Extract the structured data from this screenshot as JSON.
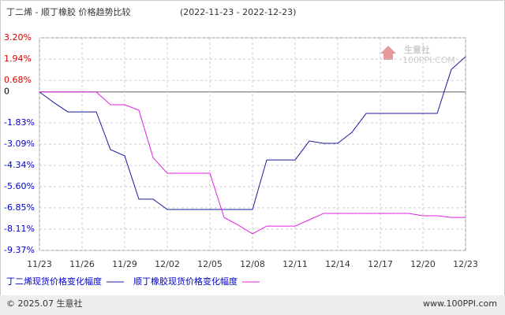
{
  "chart_data": {
    "type": "line",
    "title": "丁二烯 - 顺丁橡胶 价格趋势比较",
    "subtitle": "(2022-11-23 - 2022-12-23)",
    "categories": [
      "11/23",
      null,
      null,
      "11/26",
      null,
      null,
      "11/29",
      null,
      null,
      "12/02",
      null,
      null,
      "12/05",
      null,
      null,
      "12/08",
      null,
      null,
      "12/11",
      null,
      null,
      "12/14",
      null,
      null,
      "12/17",
      null,
      null,
      "12/20",
      null,
      null,
      "12/23"
    ],
    "series": [
      {
        "name": "丁二烯现货价格变化幅度",
        "color": "#1a1aa0",
        "values": [
          0,
          -0.62,
          -1.18,
          -1.18,
          -1.18,
          -3.41,
          -3.78,
          -6.34,
          -6.34,
          -6.95,
          -6.95,
          -6.95,
          -6.95,
          -6.95,
          -6.95,
          -6.95,
          -4.02,
          -4.02,
          -4.02,
          -2.9,
          -3.04,
          -3.04,
          -2.39,
          -1.27,
          -1.27,
          -1.27,
          -1.27,
          -1.27,
          -1.27,
          1.33,
          2.08
        ]
      },
      {
        "name": "顺丁橡胶现货价格变化幅度",
        "color": "#e020e0",
        "values": [
          0,
          0,
          0,
          0,
          0,
          -0.76,
          -0.76,
          -1.08,
          -3.88,
          -4.81,
          -4.81,
          -4.81,
          -4.81,
          -7.42,
          -7.88,
          -8.39,
          -7.93,
          -7.93,
          -7.93,
          -7.56,
          -7.18,
          -7.18,
          -7.18,
          -7.18,
          -7.18,
          -7.18,
          -7.18,
          -7.32,
          -7.32,
          -7.42,
          -7.42
        ]
      }
    ],
    "ylim": [
      -9.37,
      3.2
    ],
    "yticks": [
      {
        "value": 3.2,
        "label": "3.20%"
      },
      {
        "value": 1.94,
        "label": "1.94%"
      },
      {
        "value": 0.68,
        "label": "0.68%"
      },
      0,
      {
        "value": -1.83,
        "label": "-1.83%"
      },
      {
        "value": -3.09,
        "label": "-3.09%"
      },
      {
        "value": -4.34,
        "label": "-4.34%"
      },
      {
        "value": -5.6,
        "label": "-5.60%"
      },
      {
        "value": -6.85,
        "label": "-6.85%"
      },
      {
        "value": -8.11,
        "label": "-8.11%"
      },
      {
        "value": -9.37,
        "label": "-9.37%"
      }
    ],
    "grid": true
  },
  "watermark": {
    "name": "生意社",
    "site": "100PPI.COM"
  },
  "footer": {
    "left": "© 2025.07 生意社",
    "right": "www.100PPI.com"
  }
}
